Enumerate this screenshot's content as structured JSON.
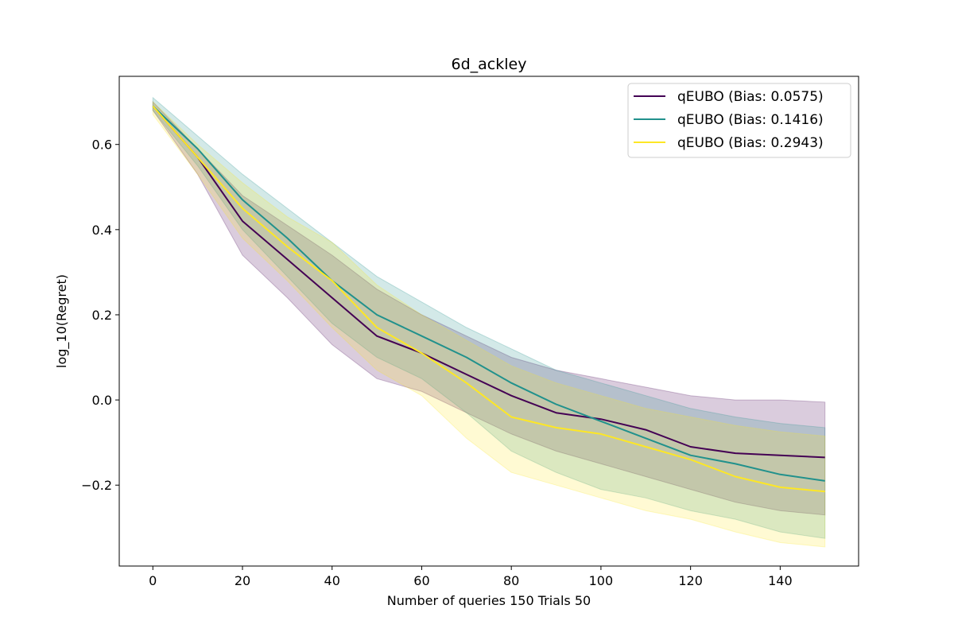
{
  "chart_data": {
    "type": "line",
    "title": "6d_ackley",
    "xlabel": "Number of queries 150 Trials 50",
    "ylabel": "log_10(Regret)",
    "xlim": [
      -7.5,
      157.5
    ],
    "ylim": [
      -0.39,
      0.76
    ],
    "xticks": [
      0,
      20,
      40,
      60,
      80,
      100,
      120,
      140
    ],
    "xtick_labels": [
      "0",
      "20",
      "40",
      "60",
      "80",
      "100",
      "120",
      "140"
    ],
    "yticks": [
      -0.2,
      0.0,
      0.2,
      0.4,
      0.6
    ],
    "ytick_labels": [
      "−0.2",
      "0.0",
      "0.2",
      "0.4",
      "0.6"
    ],
    "grid": false,
    "legend_position": "top-right",
    "x": [
      0,
      10,
      20,
      30,
      40,
      50,
      60,
      70,
      80,
      90,
      100,
      110,
      120,
      130,
      140,
      150
    ],
    "series": [
      {
        "name": "qEUBO (Bias: 0.0575)",
        "color": "#440154",
        "values": [
          0.69,
          0.57,
          0.42,
          0.33,
          0.24,
          0.15,
          0.11,
          0.06,
          0.01,
          -0.03,
          -0.045,
          -0.07,
          -0.11,
          -0.125,
          -0.13,
          -0.135
        ],
        "lower": [
          0.68,
          0.53,
          0.34,
          0.24,
          0.13,
          0.05,
          0.02,
          -0.03,
          -0.08,
          -0.12,
          -0.15,
          -0.18,
          -0.21,
          -0.24,
          -0.26,
          -0.27
        ],
        "upper": [
          0.7,
          0.59,
          0.48,
          0.41,
          0.34,
          0.26,
          0.2,
          0.15,
          0.1,
          0.07,
          0.05,
          0.03,
          0.01,
          0.0,
          0.0,
          -0.005
        ]
      },
      {
        "name": "qEUBO (Bias: 0.1416)",
        "color": "#21918c",
        "values": [
          0.69,
          0.59,
          0.47,
          0.38,
          0.28,
          0.2,
          0.15,
          0.1,
          0.04,
          -0.01,
          -0.05,
          -0.09,
          -0.13,
          -0.15,
          -0.175,
          -0.19
        ],
        "lower": [
          0.68,
          0.55,
          0.4,
          0.29,
          0.18,
          0.1,
          0.05,
          -0.03,
          -0.12,
          -0.17,
          -0.21,
          -0.23,
          -0.26,
          -0.28,
          -0.31,
          -0.325
        ],
        "upper": [
          0.71,
          0.62,
          0.53,
          0.45,
          0.37,
          0.29,
          0.23,
          0.17,
          0.12,
          0.07,
          0.04,
          0.01,
          -0.02,
          -0.04,
          -0.055,
          -0.065
        ]
      },
      {
        "name": "qEUBO (Bias: 0.2943)",
        "color": "#fde725",
        "values": [
          0.69,
          0.57,
          0.45,
          0.36,
          0.28,
          0.17,
          0.11,
          0.04,
          -0.04,
          -0.065,
          -0.08,
          -0.11,
          -0.14,
          -0.18,
          -0.205,
          -0.215
        ],
        "lower": [
          0.67,
          0.53,
          0.38,
          0.28,
          0.17,
          0.07,
          0.01,
          -0.09,
          -0.17,
          -0.2,
          -0.23,
          -0.26,
          -0.28,
          -0.31,
          -0.335,
          -0.345
        ],
        "upper": [
          0.7,
          0.6,
          0.51,
          0.43,
          0.37,
          0.27,
          0.2,
          0.14,
          0.08,
          0.04,
          0.01,
          -0.02,
          -0.04,
          -0.06,
          -0.075,
          -0.085
        ]
      }
    ]
  }
}
